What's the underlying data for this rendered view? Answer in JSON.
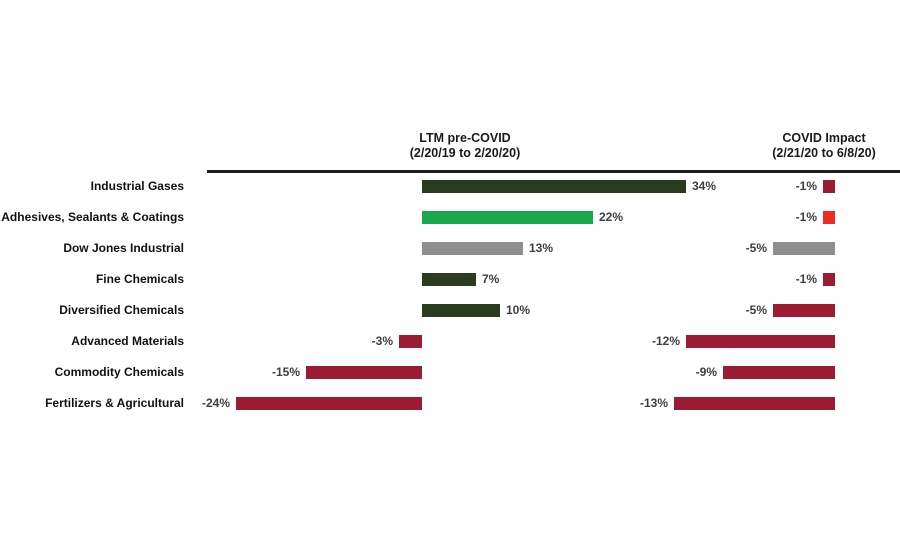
{
  "chart_data": {
    "type": "bar",
    "orientation": "horizontal",
    "title": "",
    "categories": [
      "Industrial Gases",
      "Adhesives, Sealants & Coatings",
      "Dow Jones Industrial",
      "Fine Chemicals",
      "Diversified Chemicals",
      "Advanced Materials",
      "Commodity Chemicals",
      "Fertilizers & Agricultural"
    ],
    "series": [
      {
        "name": "LTM pre-COVID",
        "subtitle": "(2/20/19 to 2/20/20)",
        "values": [
          34,
          22,
          13,
          7,
          10,
          -3,
          -15,
          -24
        ],
        "labels": [
          "34%",
          "22%",
          "13%",
          "7%",
          "10%",
          "-3%",
          "-15%",
          "-24%"
        ],
        "colors": [
          "#2b3b1e",
          "#18a94e",
          "#8f8f8f",
          "#2b3b1e",
          "#2b3b1e",
          "#9b1b33",
          "#9b1b33",
          "#9b1b33"
        ],
        "xlim": [
          -24,
          34
        ]
      },
      {
        "name": "COVID Impact",
        "subtitle": "(2/21/20 to 6/8/20)",
        "values": [
          -1,
          -1,
          -5,
          -1,
          -5,
          -12,
          -9,
          -13
        ],
        "labels": [
          "-1%",
          "-1%",
          "-5%",
          "-1%",
          "-5%",
          "-12%",
          "-9%",
          "-13%"
        ],
        "colors": [
          "#9b1b33",
          "#ee2c23",
          "#8f8f8f",
          "#9b1b33",
          "#9b1b33",
          "#9b1b33",
          "#9b1b33",
          "#9b1b33"
        ],
        "xlim": [
          -13,
          0
        ]
      }
    ],
    "value_format": "percent",
    "legend_position": "none",
    "grid": false,
    "axis_line_color": "#1f1f1f",
    "colors_legend": {
      "dark_green": "#2b3b1e",
      "bright_green": "#18a94e",
      "gray": "#8f8f8f",
      "dark_red": "#9b1b33",
      "bright_red": "#ee2c23"
    }
  }
}
